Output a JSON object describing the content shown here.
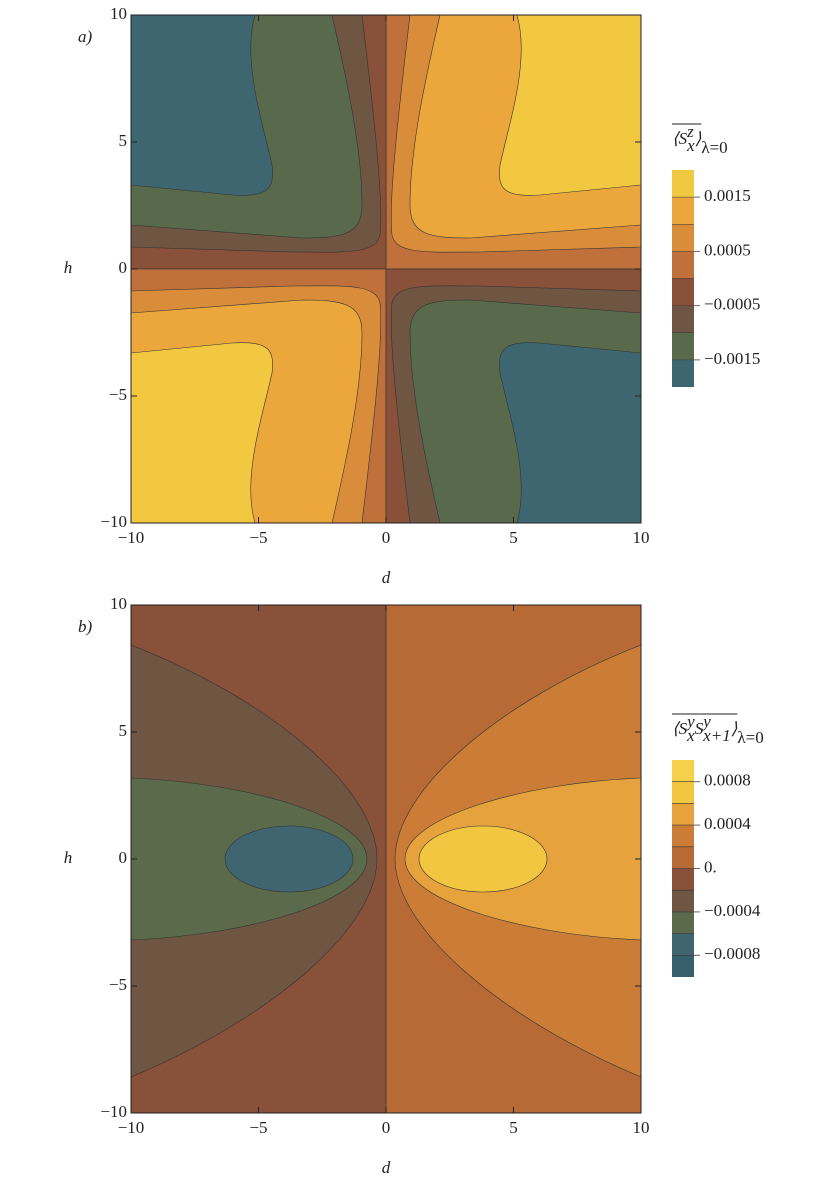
{
  "chart_data": [
    {
      "type": "contour",
      "panel_label": "a)",
      "x_label": "d",
      "y_label": "h",
      "xlim": [
        -10,
        10
      ],
      "ylim": [
        -10,
        10
      ],
      "xticks": [
        {
          "value": -10,
          "label": "−10"
        },
        {
          "value": -5,
          "label": "−5"
        },
        0,
        5,
        10
      ],
      "yticks": [
        {
          "value": -10,
          "label": "−10"
        },
        {
          "value": -5,
          "label": "−5"
        },
        0,
        5,
        10
      ],
      "levels": [
        -0.002,
        -0.0015,
        -0.001,
        -0.0005,
        0,
        0.0005,
        0.001,
        0.0015,
        0.002
      ],
      "colors": [
        "#3e6670",
        "#586a4b",
        "#6e5642",
        "#89503a",
        "#c0703a",
        "#d98c3a",
        "#eba73c",
        "#f3c841"
      ],
      "colorbar_ticks": [
        0.0015,
        0.0005,
        {
          "value": -0.0005,
          "label": "−0.0005"
        },
        {
          "value": -0.0015,
          "label": "−0.0015"
        }
      ],
      "colorbar_label": [
        {
          "text": "⟨S"
        },
        {
          "text": "x",
          "shift": "sub"
        },
        {
          "text": "z",
          "shift": "sup"
        },
        {
          "text": "⟩"
        },
        {
          "text": "λ=0",
          "shift": "cond"
        }
      ]
    },
    {
      "type": "contour",
      "panel_label": "b)",
      "x_label": "d",
      "y_label": "h",
      "xlim": [
        -10,
        10
      ],
      "ylim": [
        -10,
        10
      ],
      "xticks": [
        {
          "value": -10,
          "label": "−10"
        },
        {
          "value": -5,
          "label": "−5"
        },
        0,
        5,
        10
      ],
      "yticks": [
        {
          "value": -10,
          "label": "−10"
        },
        {
          "value": -5,
          "label": "−5"
        },
        0,
        5,
        10
      ],
      "levels": [
        -0.001,
        -0.0008,
        -0.0006,
        -0.0004,
        -0.0002,
        0,
        0.0002,
        0.0004,
        0.0006,
        0.0008,
        0.001
      ],
      "colors": [
        "#36606c",
        "#3f6670",
        "#5a6a4a",
        "#6e5642",
        "#89503a",
        "#b86a36",
        "#cb7d38",
        "#e6a23c",
        "#f2c640",
        "#f5d04a"
      ],
      "colorbar_ticks": [
        0.0008,
        0.0004,
        {
          "value": 0,
          "label": "0."
        },
        {
          "value": -0.0004,
          "label": "−0.0004"
        },
        {
          "value": -0.0008,
          "label": "−0.0008"
        }
      ],
      "colorbar_label": [
        {
          "text": "⟨S"
        },
        {
          "text": "x",
          "shift": "sub"
        },
        {
          "text": "y",
          "shift": "sup"
        },
        {
          "text": "S"
        },
        {
          "text": "x+1",
          "shift": "sub"
        },
        {
          "text": "y",
          "shift": "sup"
        },
        {
          "text": "⟩"
        },
        {
          "text": "λ=0",
          "shift": "cond"
        }
      ]
    }
  ]
}
